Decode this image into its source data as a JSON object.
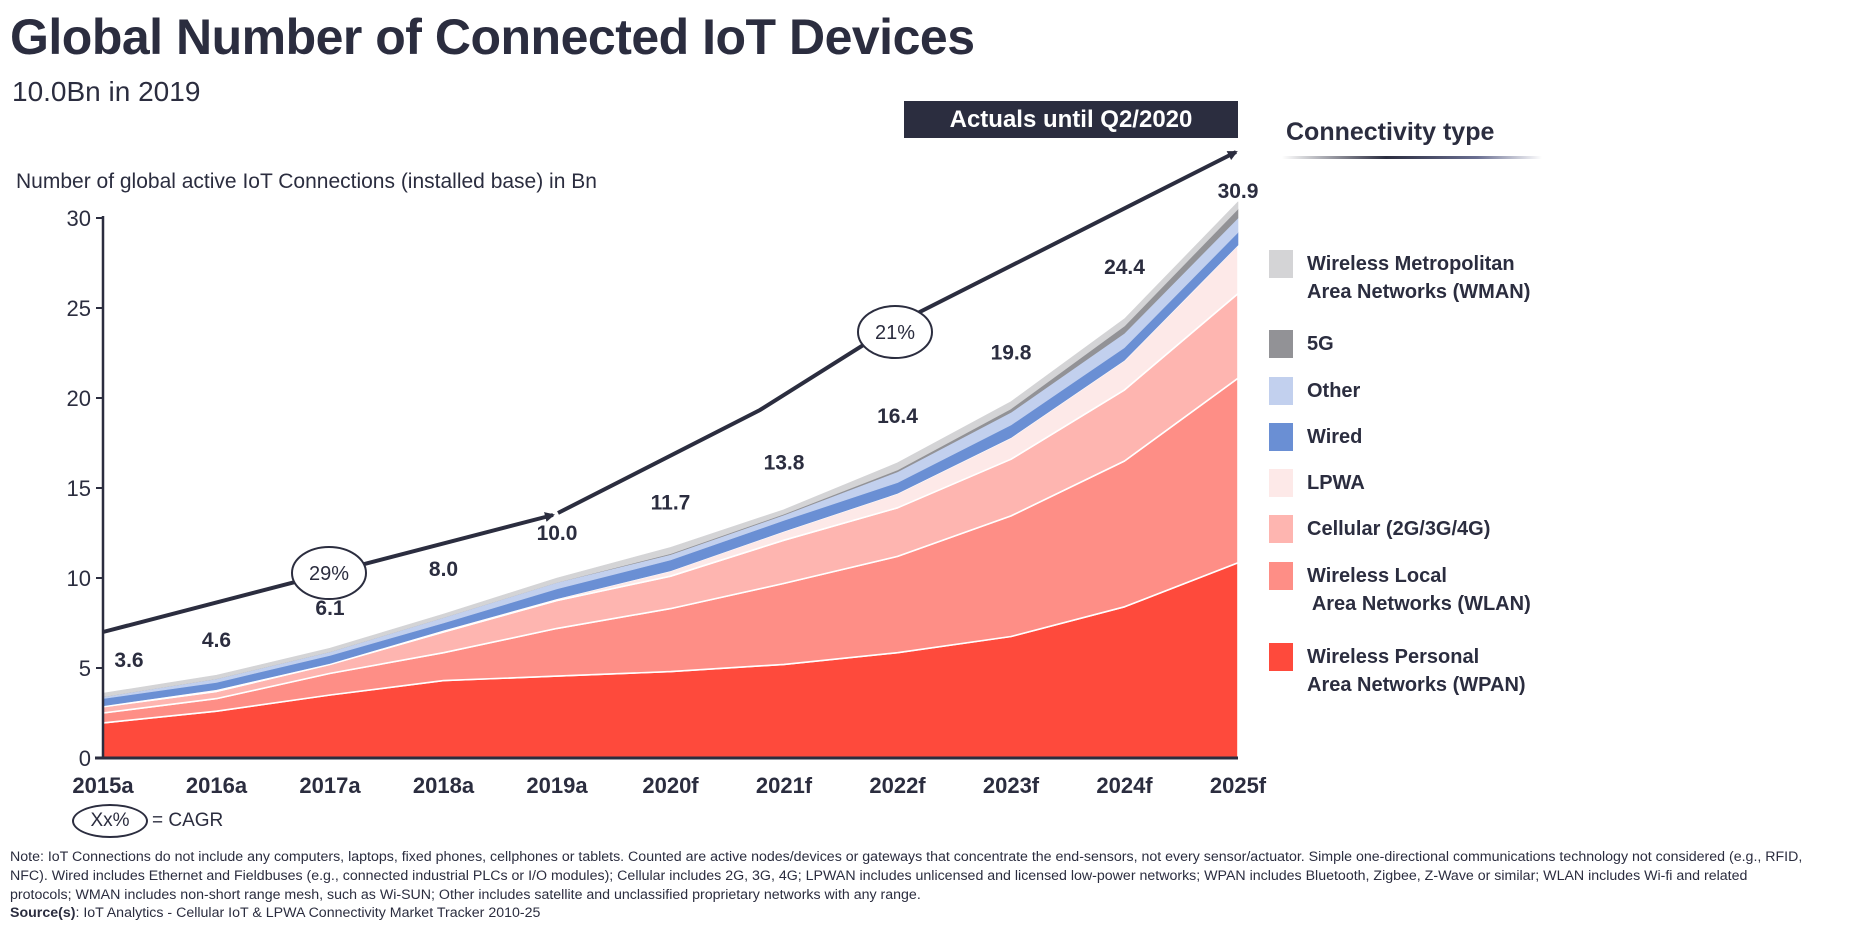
{
  "header": {
    "title": "Global Number of Connected IoT Devices",
    "subtitle": "10.0Bn in 2019",
    "actuals_badge": "Actuals until Q2/2020"
  },
  "legend": {
    "title": "Connectivity type",
    "items": [
      {
        "key": "wman",
        "label": "Wireless Metropolitan\nArea Networks (WMAN)",
        "color": "#d4d4d6"
      },
      {
        "key": "g5",
        "label": "5G",
        "color": "#929296"
      },
      {
        "key": "other",
        "label": "Other",
        "color": "#c2d0ee"
      },
      {
        "key": "wired",
        "label": "Wired",
        "color": "#6a8fd4"
      },
      {
        "key": "lpwa",
        "label": "LPWA",
        "color": "#fde9e8"
      },
      {
        "key": "cellular",
        "label": "Cellular (2G/3G/4G)",
        "color": "#feb5b0"
      },
      {
        "key": "wlan",
        "label": "Wireless Local\n Area Networks (WLAN)",
        "color": "#fe8e86"
      },
      {
        "key": "wpan",
        "label": "Wireless Personal\nArea Networks (WPAN)",
        "color": "#fe4a3c"
      }
    ]
  },
  "cagr_key": {
    "symbol": "Xx%",
    "text": "= CAGR"
  },
  "notes": {
    "note": "Note: IoT Connections do not include any computers, laptops, fixed phones, cellphones or tablets. Counted are active nodes/devices or gateways that concentrate the end-sensors, not every sensor/actuator. Simple one-directional communications technology not considered (e.g., RFID, NFC). Wired includes Ethernet and Fieldbuses (e.g., connected industrial PLCs or I/O modules); Cellular includes 2G, 3G, 4G;  LPWAN includes unlicensed and licensed low-power networks; WPAN includes Bluetooth, Zigbee, Z-Wave or similar; WLAN includes Wi-fi and related protocols; WMAN includes non-short range mesh, such as Wi-SUN; Other includes satellite and unclassified proprietary networks with any range.",
    "source_label": "Source(s)",
    "source_text": ": IoT Analytics - Cellular IoT & LPWA Connectivity Market Tracker 2010-25"
  },
  "chart_data": {
    "type": "area",
    "stacked": true,
    "title": "Global Number of Connected IoT Devices",
    "subtitle": "10.0Bn in 2019",
    "ylabel": "Number of global active IoT Connections (installed base) in Bn",
    "xlabel": "",
    "ylim": [
      0,
      30
    ],
    "yticks": [
      0,
      5,
      10,
      15,
      20,
      25,
      30
    ],
    "categories": [
      "2015a",
      "2016a",
      "2017a",
      "2018a",
      "2019a",
      "2020f",
      "2021f",
      "2022f",
      "2023f",
      "2024f",
      "2025f"
    ],
    "totals": [
      3.6,
      4.6,
      6.1,
      8.0,
      10.0,
      11.7,
      13.8,
      16.4,
      19.8,
      24.4,
      30.9
    ],
    "series": [
      {
        "name": "Wireless Personal Area Networks (WPAN)",
        "key": "wpan",
        "values": [
          1.95,
          2.6,
          3.5,
          4.3,
          4.55,
          4.8,
          5.2,
          5.85,
          6.75,
          8.4,
          10.85
        ]
      },
      {
        "name": "Wireless Local Area Networks (WLAN)",
        "key": "wlan",
        "values": [
          0.55,
          0.7,
          1.2,
          1.55,
          2.65,
          3.5,
          4.5,
          5.35,
          6.7,
          8.1,
          10.25
        ]
      },
      {
        "name": "Cellular (2G/3G/4G)",
        "key": "cellular",
        "values": [
          0.35,
          0.4,
          0.5,
          1.15,
          1.55,
          1.8,
          2.4,
          2.7,
          3.15,
          3.95,
          4.7
        ]
      },
      {
        "name": "LPWA",
        "key": "lpwa",
        "values": [
          0.05,
          0.1,
          0.05,
          0.1,
          0.1,
          0.3,
          0.5,
          0.8,
          1.2,
          1.65,
          2.7
        ]
      },
      {
        "name": "Wired",
        "key": "wired",
        "values": [
          0.4,
          0.4,
          0.45,
          0.4,
          0.55,
          0.6,
          0.6,
          0.6,
          0.7,
          0.7,
          0.7
        ]
      },
      {
        "name": "Other",
        "key": "other",
        "values": [
          0.1,
          0.2,
          0.2,
          0.3,
          0.35,
          0.3,
          0.3,
          0.6,
          0.7,
          0.8,
          0.8
        ]
      },
      {
        "name": "5G",
        "key": "g5",
        "values": [
          0.0,
          0.0,
          0.0,
          0.0,
          0.0,
          0.05,
          0.05,
          0.1,
          0.2,
          0.4,
          0.5
        ]
      },
      {
        "name": "Wireless Metropolitan Area Networks (WMAN)",
        "key": "wman",
        "values": [
          0.2,
          0.2,
          0.2,
          0.2,
          0.25,
          0.35,
          0.25,
          0.4,
          0.4,
          0.4,
          0.4
        ]
      }
    ],
    "cagr_annotations": [
      {
        "label": "29%",
        "from": "2015a",
        "to": "2019a"
      },
      {
        "label": "21%",
        "from": "2019a",
        "to": "2025f"
      }
    ],
    "annotation": "Actuals until Q2/2020",
    "legend_position": "right",
    "grid": false
  }
}
